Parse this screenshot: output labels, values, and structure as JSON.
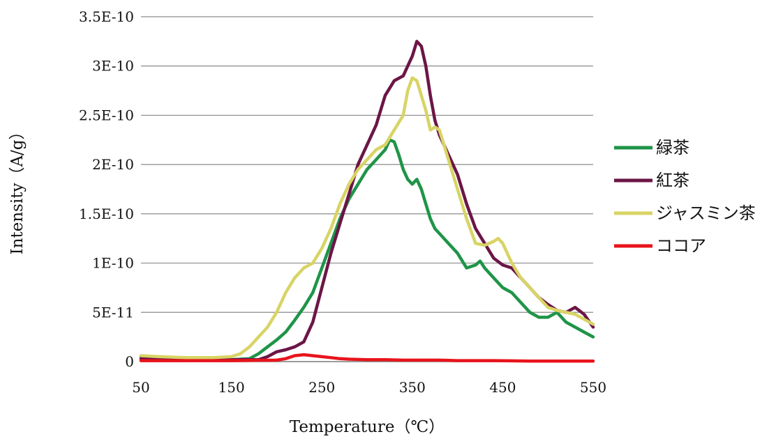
{
  "chart_data": {
    "type": "line",
    "xlabel": "Temperature（℃）",
    "ylabel": "Intensity（A/g）",
    "xlim": [
      50,
      550
    ],
    "ylim": [
      0,
      3.5e-10
    ],
    "xticks": [
      {
        "value": 50,
        "label": "50"
      },
      {
        "value": 150,
        "label": "150"
      },
      {
        "value": 250,
        "label": "250"
      },
      {
        "value": 350,
        "label": "350"
      },
      {
        "value": 450,
        "label": "450"
      },
      {
        "value": 550,
        "label": "550"
      }
    ],
    "yticks": [
      {
        "value": 0,
        "label": "0"
      },
      {
        "value": 5e-11,
        "label": "5E-11"
      },
      {
        "value": 1e-10,
        "label": "1E-10"
      },
      {
        "value": 1.5e-10,
        "label": "1.5E-10"
      },
      {
        "value": 2e-10,
        "label": "2E-10"
      },
      {
        "value": 2.5e-10,
        "label": "2.5E-10"
      },
      {
        "value": 3e-10,
        "label": "3E-10"
      },
      {
        "value": 3.5e-10,
        "label": "3.5E-10"
      }
    ],
    "grid": "horizontal",
    "legend_position": "right",
    "series": [
      {
        "name": "緑茶",
        "color": "#1f9448",
        "x": [
          50,
          70,
          100,
          130,
          150,
          170,
          180,
          190,
          200,
          210,
          220,
          230,
          240,
          250,
          260,
          270,
          280,
          290,
          300,
          310,
          320,
          325,
          330,
          335,
          340,
          345,
          350,
          355,
          360,
          365,
          370,
          375,
          380,
          390,
          400,
          410,
          420,
          425,
          430,
          440,
          450,
          460,
          470,
          480,
          490,
          500,
          510,
          520,
          530,
          540,
          550
        ],
        "y": [
          5e-12,
          4e-12,
          3e-12,
          2e-12,
          2e-12,
          3e-12,
          8e-12,
          1.5e-11,
          2.2e-11,
          3e-11,
          4.2e-11,
          5.5e-11,
          7e-11,
          9.5e-11,
          1.2e-10,
          1.45e-10,
          1.65e-10,
          1.8e-10,
          1.95e-10,
          2.05e-10,
          2.15e-10,
          2.25e-10,
          2.23e-10,
          2.1e-10,
          1.95e-10,
          1.85e-10,
          1.8e-10,
          1.85e-10,
          1.75e-10,
          1.6e-10,
          1.45e-10,
          1.35e-10,
          1.3e-10,
          1.2e-10,
          1.1e-10,
          9.5e-11,
          9.8e-11,
          1.02e-10,
          9.5e-11,
          8.5e-11,
          7.5e-11,
          7e-11,
          6e-11,
          5e-11,
          4.5e-11,
          4.5e-11,
          5e-11,
          4e-11,
          3.5e-11,
          3e-11,
          2.5e-11
        ]
      },
      {
        "name": "紅茶",
        "color": "#6b1646",
        "x": [
          50,
          100,
          150,
          180,
          190,
          200,
          210,
          220,
          230,
          240,
          250,
          260,
          270,
          280,
          290,
          300,
          310,
          320,
          330,
          340,
          345,
          350,
          355,
          360,
          365,
          370,
          375,
          380,
          390,
          400,
          410,
          420,
          430,
          440,
          450,
          460,
          470,
          480,
          490,
          500,
          510,
          520,
          530,
          540,
          550
        ],
        "y": [
          3e-12,
          2e-12,
          2e-12,
          2e-12,
          5e-12,
          1e-11,
          1.2e-11,
          1.5e-11,
          2e-11,
          4e-11,
          7.5e-11,
          1.1e-10,
          1.4e-10,
          1.7e-10,
          2e-10,
          2.2e-10,
          2.4e-10,
          2.7e-10,
          2.85e-10,
          2.9e-10,
          3e-10,
          3.1e-10,
          3.25e-10,
          3.2e-10,
          3e-10,
          2.7e-10,
          2.45e-10,
          2.3e-10,
          2.1e-10,
          1.9e-10,
          1.6e-10,
          1.35e-10,
          1.2e-10,
          1.05e-10,
          9.8e-11,
          9.5e-11,
          8.5e-11,
          7.5e-11,
          6.5e-11,
          5.8e-11,
          5.2e-11,
          5e-11,
          5.5e-11,
          4.8e-11,
          3.5e-11
        ]
      },
      {
        "name": "ジャスミン茶",
        "color": "#d8d466",
        "x": [
          50,
          70,
          100,
          130,
          150,
          160,
          170,
          180,
          190,
          200,
          210,
          220,
          230,
          240,
          250,
          260,
          270,
          280,
          290,
          300,
          310,
          320,
          330,
          340,
          345,
          350,
          355,
          360,
          365,
          370,
          375,
          380,
          390,
          400,
          410,
          420,
          430,
          440,
          445,
          450,
          460,
          470,
          480,
          490,
          500,
          510,
          520,
          530,
          540,
          550
        ],
        "y": [
          6e-12,
          5e-12,
          4e-12,
          4e-12,
          5e-12,
          8e-12,
          1.5e-11,
          2.5e-11,
          3.5e-11,
          5e-11,
          7e-11,
          8.5e-11,
          9.5e-11,
          1e-10,
          1.15e-10,
          1.35e-10,
          1.6e-10,
          1.8e-10,
          1.95e-10,
          2.05e-10,
          2.15e-10,
          2.2e-10,
          2.35e-10,
          2.5e-10,
          2.75e-10,
          2.88e-10,
          2.85e-10,
          2.7e-10,
          2.55e-10,
          2.35e-10,
          2.38e-10,
          2.35e-10,
          2.05e-10,
          1.75e-10,
          1.45e-10,
          1.2e-10,
          1.18e-10,
          1.22e-10,
          1.25e-10,
          1.2e-10,
          1e-10,
          8.5e-11,
          7.5e-11,
          6.5e-11,
          5.5e-11,
          5.2e-11,
          5e-11,
          4.8e-11,
          4.3e-11,
          3.8e-11
        ]
      },
      {
        "name": "ココア",
        "color": "#e8141c",
        "x": [
          50,
          100,
          150,
          200,
          210,
          220,
          230,
          240,
          250,
          260,
          270,
          280,
          300,
          320,
          340,
          360,
          380,
          400,
          420,
          440,
          460,
          480,
          500,
          520,
          540,
          550
        ],
        "y": [
          1e-12,
          1e-12,
          1e-12,
          1.5e-12,
          3e-12,
          6e-12,
          7e-12,
          6e-12,
          5e-12,
          4e-12,
          3e-12,
          2.5e-12,
          2e-12,
          2e-12,
          1.5e-12,
          1.5e-12,
          1.5e-12,
          1e-12,
          1e-12,
          1e-12,
          8e-13,
          6e-13,
          5e-13,
          5e-13,
          5e-13,
          5e-13
        ]
      }
    ]
  }
}
